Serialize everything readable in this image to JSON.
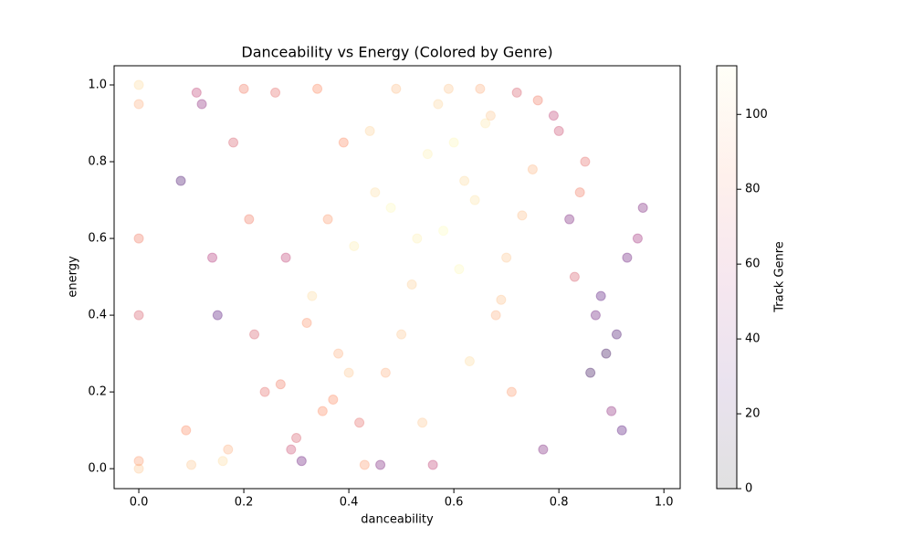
{
  "chart_data": {
    "type": "scatter",
    "title": "Danceability vs Energy (Colored by Genre)",
    "x_label": "danceability",
    "y_label": "energy",
    "colorbar_label": "Track Genre",
    "x": [
      0.55,
      0.62,
      0.48,
      0.7,
      0.66,
      0.58,
      0.45,
      0.52,
      0.73,
      0.6,
      0.41,
      0.68,
      0.57,
      0.64,
      0.5,
      0.75,
      0.44,
      0.61,
      0.53,
      0.69,
      0.35,
      0.3,
      0.38,
      0.27,
      0.33,
      0.42,
      0.36,
      0.29,
      0.4,
      0.32,
      0.82,
      0.88,
      0.85,
      0.91,
      0.79,
      0.86,
      0.93,
      0.84,
      0.9,
      0.95,
      0.12,
      0.18,
      0.09,
      0.15,
      0.21,
      0.11,
      0.24,
      0.08,
      0.17,
      0.14,
      0.2,
      0.26,
      0.34,
      0.46,
      0.56,
      0.65,
      0.72,
      0.31,
      0.43,
      0.59,
      0.0,
      0.0,
      0.0,
      0.0,
      0.0,
      0.0,
      0.1,
      0.16,
      0.22,
      0.28,
      0.37,
      0.47,
      0.54,
      0.63,
      0.71,
      0.77,
      0.8,
      0.87,
      0.92,
      0.96,
      0.83,
      0.89,
      0.76,
      0.67,
      0.49,
      0.39
    ],
    "values": [
      0.82,
      0.75,
      0.68,
      0.55,
      0.9,
      0.62,
      0.72,
      0.48,
      0.66,
      0.85,
      0.58,
      0.4,
      0.95,
      0.7,
      0.35,
      0.78,
      0.88,
      0.52,
      0.6,
      0.44,
      0.15,
      0.08,
      0.3,
      0.22,
      0.45,
      0.12,
      0.65,
      0.05,
      0.25,
      0.38,
      0.65,
      0.45,
      0.8,
      0.35,
      0.92,
      0.25,
      0.55,
      0.72,
      0.15,
      0.6,
      0.95,
      0.85,
      0.1,
      0.4,
      0.65,
      0.98,
      0.2,
      0.75,
      0.05,
      0.55,
      0.99,
      0.98,
      0.99,
      0.01,
      0.01,
      0.99,
      0.98,
      0.02,
      0.01,
      0.99,
      0.0,
      0.02,
      0.6,
      0.95,
      1.0,
      0.4,
      0.01,
      0.02,
      0.35,
      0.55,
      0.18,
      0.25,
      0.12,
      0.28,
      0.2,
      0.05,
      0.88,
      0.4,
      0.1,
      0.68,
      0.5,
      0.3,
      0.96,
      0.92,
      0.99,
      0.85
    ],
    "color_values": [
      110,
      105,
      112,
      100,
      108,
      113,
      106,
      102,
      98,
      111,
      109,
      95,
      104,
      107,
      100,
      96,
      103,
      112,
      110,
      99,
      85,
      70,
      95,
      80,
      105,
      75,
      90,
      65,
      100,
      88,
      40,
      30,
      75,
      25,
      60,
      20,
      35,
      80,
      45,
      50,
      45,
      70,
      85,
      30,
      80,
      60,
      75,
      25,
      95,
      55,
      80,
      75,
      85,
      40,
      60,
      95,
      70,
      35,
      90,
      100,
      100,
      90,
      80,
      95,
      105,
      70,
      100,
      105,
      70,
      60,
      85,
      95,
      100,
      105,
      90,
      40,
      65,
      35,
      30,
      40,
      70,
      20,
      80,
      100,
      98,
      85
    ],
    "xlim": [
      -0.047,
      1.031
    ],
    "ylim": [
      -0.052,
      1.05
    ],
    "clim": [
      0,
      113
    ],
    "xticks": [
      {
        "value": 0,
        "label": "0.0"
      },
      {
        "value": 0.2,
        "label": "0.2"
      },
      {
        "value": 0.4,
        "label": "0.4"
      },
      {
        "value": 0.6,
        "label": "0.6"
      },
      {
        "value": 0.8,
        "label": "0.8"
      },
      {
        "value": 1,
        "label": "1.0"
      }
    ],
    "yticks": [
      {
        "value": 0,
        "label": "0.0"
      },
      {
        "value": 0.2,
        "label": "0.2"
      },
      {
        "value": 0.4,
        "label": "0.4"
      },
      {
        "value": 0.6,
        "label": "0.6"
      },
      {
        "value": 0.8,
        "label": "0.8"
      },
      {
        "value": 1,
        "label": "1.0"
      }
    ],
    "cticks": [
      0,
      20,
      40,
      60,
      80,
      100
    ]
  }
}
